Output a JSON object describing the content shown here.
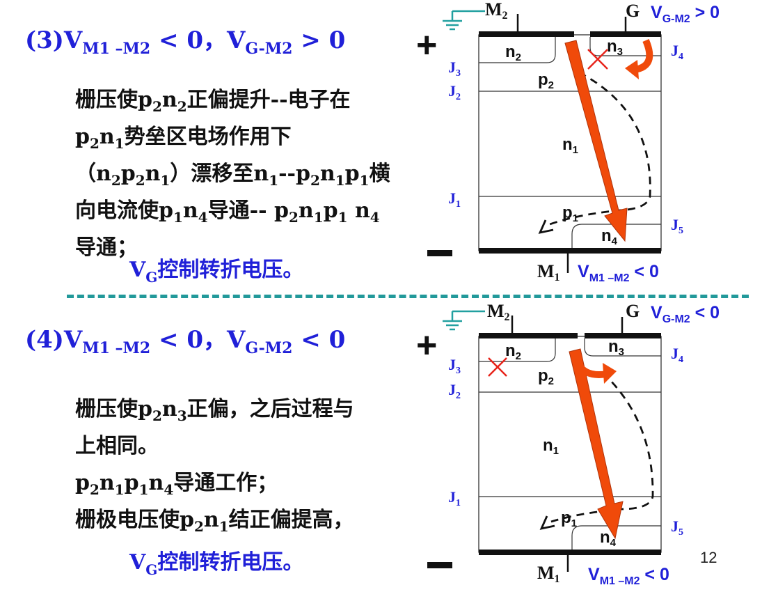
{
  "page_number": "12",
  "colors": {
    "blue": "#2020d8",
    "arrow": "#f04a0a",
    "cross": "#e8231a",
    "divider": "#22999a"
  },
  "section3": {
    "condition": {
      "num": "(3)V",
      "sub1": "M1 –M2",
      "mid": " < 0，V",
      "sub2": "G-M2",
      "end": " > 0"
    },
    "lines": [
      [
        "栅压使p",
        "2",
        "n",
        "2",
        "正偏提升--电子在"
      ],
      [
        "p",
        "2",
        "n",
        "1",
        "势垒区电场作用下"
      ],
      [
        "（n",
        "2",
        "p",
        "2",
        "n",
        "1",
        "）漂移至n",
        "1",
        "--p",
        "2",
        "n",
        "1",
        "p",
        "1",
        "横"
      ],
      [
        "向电流使p",
        "1",
        "n",
        "4",
        "导通-- p",
        "2",
        "n",
        "1",
        "p",
        "1",
        " n",
        "4"
      ],
      [
        "导通；"
      ]
    ],
    "vg": {
      "v": "V",
      "sub": "G",
      "text": "控制转折电压。"
    }
  },
  "section4": {
    "condition": {
      "num": "(4)V",
      "sub1": "M1 –M2",
      "mid": " < 0，V",
      "sub2": "G-M2",
      "end": " < 0"
    },
    "lines": [
      [
        "栅压使p",
        "2",
        "n",
        "3",
        "正偏，之后过程与"
      ],
      [
        "上相同。"
      ],
      [
        "p",
        "2",
        "n",
        "1",
        "p",
        "1",
        "n",
        "4",
        "导通工作；"
      ],
      [
        "栅极电压使p",
        "2",
        "n",
        "1",
        "结正偏提高，"
      ]
    ],
    "vg": {
      "v": "V",
      "sub": "G",
      "text": "控制转折电压。"
    }
  },
  "diagram_top": {
    "plus": "+",
    "minus": "−",
    "m2": "M",
    "m2_sub": "2",
    "g": "G",
    "vg": {
      "v": "V",
      "sub": "G-M2",
      "rel": " > 0"
    },
    "m1": "M",
    "m1_sub": "1",
    "vm": {
      "v": "V",
      "sub": "M1 –M2",
      "rel": " < 0"
    },
    "regions": {
      "n2": [
        "n",
        "2"
      ],
      "n3": [
        "n",
        "3"
      ],
      "p2": [
        "p",
        "2"
      ],
      "n1": [
        "n",
        "1"
      ],
      "p1": [
        "p",
        "1"
      ],
      "n4": [
        "n",
        "4"
      ]
    },
    "junctions": {
      "j3": [
        "J",
        "3"
      ],
      "j2": [
        "J",
        "2"
      ],
      "j1": [
        "J",
        "1"
      ],
      "j4": [
        "J",
        "4"
      ],
      "j5": [
        "J",
        "5"
      ]
    }
  },
  "diagram_bottom": {
    "plus": "+",
    "minus": "−",
    "m2": "M",
    "m2_sub": "2",
    "g": "G",
    "vg": {
      "v": "V",
      "sub": "G-M2",
      "rel": " < 0"
    },
    "m1": "M",
    "m1_sub": "1",
    "vm": {
      "v": "V",
      "sub": "M1 –M2",
      "rel": " < 0"
    },
    "regions": {
      "n2": [
        "n",
        "2"
      ],
      "n3": [
        "n",
        "3"
      ],
      "p2": [
        "p",
        "2"
      ],
      "n1": [
        "n",
        "1"
      ],
      "p1": [
        "p",
        "1"
      ],
      "n4": [
        "n",
        "4"
      ]
    },
    "junctions": {
      "j3": [
        "J",
        "3"
      ],
      "j2": [
        "J",
        "2"
      ],
      "j1": [
        "J",
        "1"
      ],
      "j4": [
        "J",
        "4"
      ],
      "j5": [
        "J",
        "5"
      ]
    }
  }
}
